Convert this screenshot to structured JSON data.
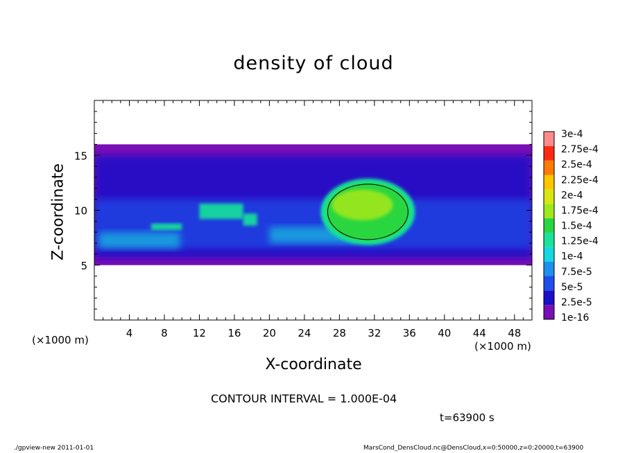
{
  "chart_data": {
    "type": "heatmap",
    "title": "density of cloud",
    "xlabel": "X-coordinate",
    "ylabel": "Z-coordinate",
    "x_unit_label_left": "(×1000 m)",
    "x_unit_label_right": "(×1000 m)",
    "xlim": [
      0,
      50
    ],
    "ylim": [
      0,
      20
    ],
    "x_ticks": [
      4,
      8,
      12,
      16,
      20,
      24,
      28,
      32,
      36,
      40,
      44,
      48
    ],
    "y_ticks": [
      5,
      10,
      15
    ],
    "colorbar": {
      "levels": [
        "1e-16",
        "2.5e-5",
        "5e-5",
        "7.5e-5",
        "1e-4",
        "1.25e-4",
        "1.5e-4",
        "1.75e-4",
        "2e-4",
        "2.25e-4",
        "2.5e-4",
        "2.75e-4",
        "3e-4"
      ],
      "colors": [
        "#7a0fb5",
        "#1a10c8",
        "#1f4fe8",
        "#1e90ee",
        "#16d6e0",
        "#19e39a",
        "#2ad640",
        "#9fe81e",
        "#d8e612",
        "#ffc600",
        "#ff7a00",
        "#ff2a10",
        "#ff8a8a"
      ]
    },
    "regions": [
      {
        "name": "cloud-layer",
        "x": [
          0,
          50
        ],
        "z": [
          5,
          16
        ],
        "level": "2.5e-5"
      },
      {
        "name": "cloud-core",
        "x": [
          26.5,
          36
        ],
        "z": [
          7.2,
          12.5
        ],
        "level": "1.5e-4"
      }
    ]
  },
  "annotations": {
    "contour_interval": "CONTOUR INTERVAL = 1.000E-04",
    "time": "t=63900 s"
  },
  "footer": {
    "left": "./gpview-new   2011-01-01",
    "right": "MarsCond_DensCloud.nc@DensCloud,x=0:50000,z=0:20000,t=63900"
  }
}
